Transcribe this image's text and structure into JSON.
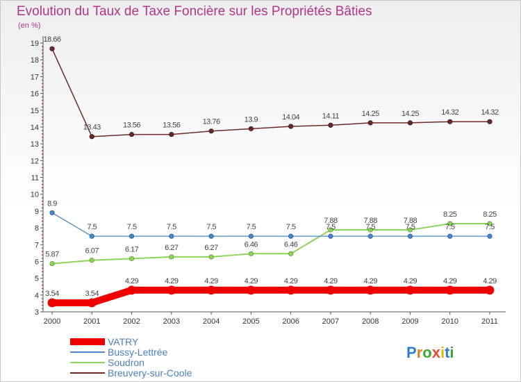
{
  "chart_data": {
    "type": "line",
    "title": "Evolution du Taux de Taxe Foncière sur les Propriétés Bâties",
    "subtitle": "(en %)",
    "xlabel": "",
    "ylabel": "",
    "ylim": [
      3,
      19
    ],
    "y_ticks": [
      "3",
      "4",
      "5",
      "6",
      "7",
      "8",
      "9",
      "10",
      "11",
      "12",
      "13",
      "14",
      "15",
      "16",
      "17",
      "18",
      "19"
    ],
    "categories": [
      "2000",
      "2001",
      "2002",
      "2003",
      "2004",
      "2005",
      "2006",
      "2007",
      "2008",
      "2009",
      "2010",
      "2011"
    ],
    "grid": false,
    "legend_position": "bottom-left",
    "series": [
      {
        "name": "VATRY",
        "color": "#ee0000",
        "values": [
          3.54,
          3.54,
          4.29,
          4.29,
          4.29,
          4.29,
          4.29,
          4.29,
          4.29,
          4.29,
          4.29,
          4.29
        ],
        "labels": [
          "3.54",
          "3.54",
          "4.29",
          "4.29",
          "4.29",
          "4.29",
          "4.29",
          "4.29",
          "4.29",
          "4.29",
          "4.29",
          "4.29"
        ]
      },
      {
        "name": "Bussy-Lettrée",
        "color": "#4a86c8",
        "values": [
          8.9,
          7.5,
          7.5,
          7.5,
          7.5,
          7.5,
          7.5,
          7.5,
          7.5,
          7.5,
          7.5,
          7.5
        ],
        "labels": [
          "8.9",
          "7.5",
          "7.5",
          "7.5",
          "7.5",
          "7.5",
          "7.5",
          "7.5",
          "7.5",
          "7.5",
          "7.5",
          "7.5"
        ]
      },
      {
        "name": "Soudron",
        "color": "#8ed45a",
        "values": [
          5.87,
          6.07,
          6.17,
          6.27,
          6.27,
          6.46,
          6.46,
          7.88,
          7.88,
          7.88,
          8.25,
          8.25
        ],
        "labels": [
          "5.87",
          "6.07",
          "6.17",
          "6.27",
          "6.27",
          "6.46",
          "6.46",
          "7.88",
          "7.88",
          "7.88",
          "8.25",
          "8.25"
        ]
      },
      {
        "name": "Breuvery-sur-Coole",
        "color": "#6b2a2a",
        "values": [
          18.66,
          13.43,
          13.56,
          13.56,
          13.76,
          13.9,
          14.04,
          14.11,
          14.25,
          14.25,
          14.32,
          14.32
        ],
        "labels": [
          "18.66",
          "13.43",
          "13.56",
          "13.56",
          "13.76",
          "13.9",
          "14.04",
          "14.11",
          "14.25",
          "14.25",
          "14.32",
          "14.32"
        ]
      }
    ]
  },
  "branding": {
    "logo_text": "Proxiti"
  }
}
